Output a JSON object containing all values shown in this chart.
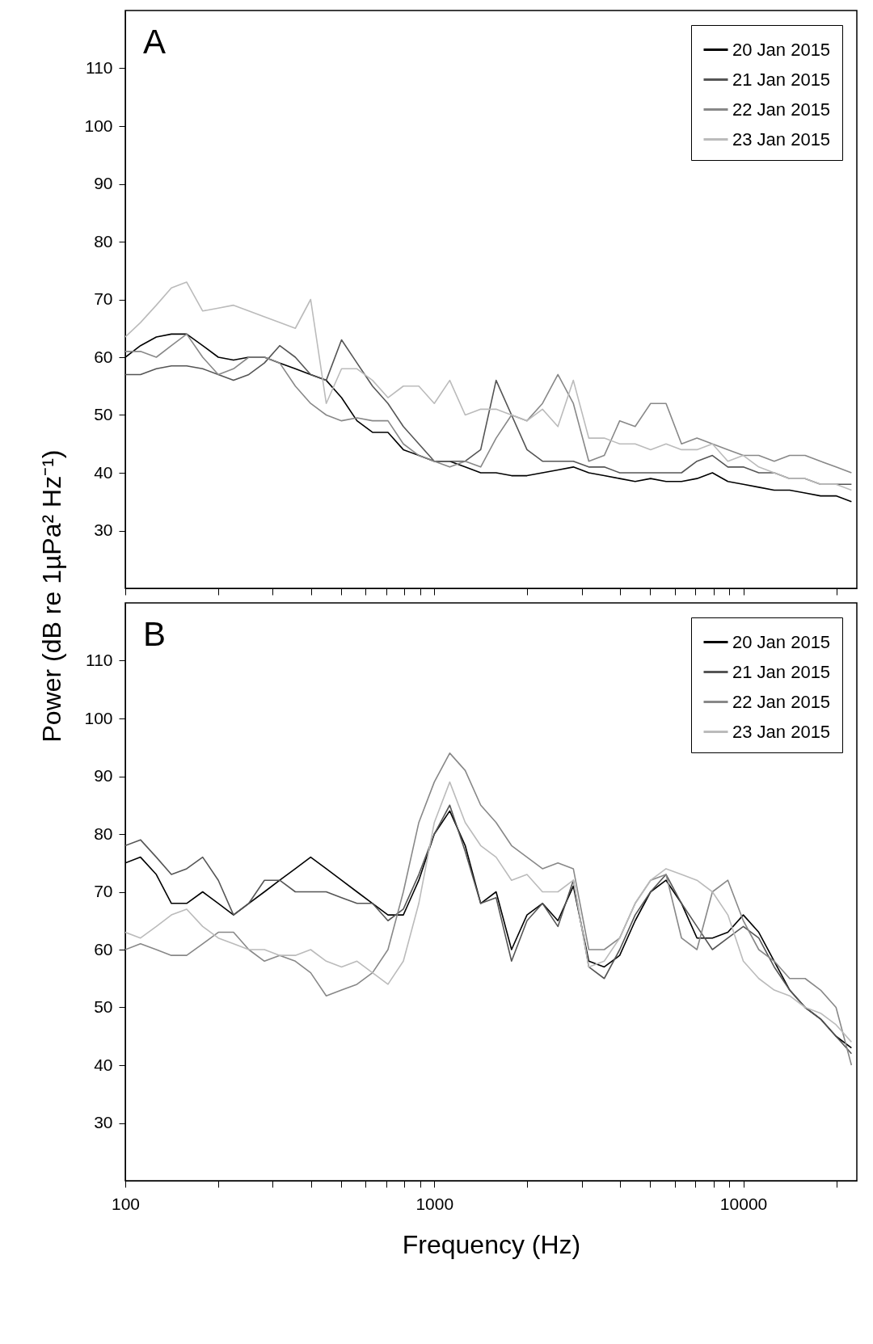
{
  "chart_data": [
    {
      "type": "line",
      "title": "A",
      "ylabel": "Power (dB re 1µPa² Hz⁻¹)",
      "log": "x",
      "grid": false,
      "legend": "top right",
      "marker": "none",
      "line_style": "solid",
      "tick_labels": "y",
      "xlim": [
        100,
        23300
      ],
      "ylim": [
        20,
        120
      ],
      "yticks": [
        30,
        40,
        50,
        60,
        70,
        80,
        90,
        100,
        110
      ],
      "xticks": [
        100,
        {
          "value": 200,
          "label": null
        },
        {
          "value": 300,
          "label": null
        },
        {
          "value": 400,
          "label": null
        },
        {
          "value": 500,
          "label": null
        },
        {
          "value": 600,
          "label": null
        },
        {
          "value": 700,
          "label": null
        },
        {
          "value": 800,
          "label": null
        },
        {
          "value": 900,
          "label": null
        },
        1000,
        {
          "value": 2000,
          "label": null
        },
        {
          "value": 3000,
          "label": null
        },
        {
          "value": 4000,
          "label": null
        },
        {
          "value": 5000,
          "label": null
        },
        {
          "value": 6000,
          "label": null
        },
        {
          "value": 7000,
          "label": null
        },
        {
          "value": 8000,
          "label": null
        },
        {
          "value": 9000,
          "label": null
        },
        10000,
        {
          "value": 20000,
          "label": null
        }
      ],
      "x": [
        100,
        112,
        126,
        141,
        158,
        178,
        200,
        224,
        251,
        282,
        316,
        355,
        398,
        447,
        501,
        562,
        631,
        708,
        794,
        891,
        1000,
        1122,
        1259,
        1413,
        1585,
        1778,
        1995,
        2239,
        2512,
        2818,
        3162,
        3548,
        3981,
        4467,
        5012,
        5623,
        6310,
        7079,
        7943,
        8913,
        10000,
        11220,
        12589,
        14125,
        15849,
        17783,
        19953,
        22387
      ],
      "series": [
        {
          "name": "20 Jan 2015",
          "color": "#000000",
          "values": [
            60,
            62,
            63.5,
            64,
            64,
            62,
            60,
            59.5,
            60,
            60,
            59,
            58,
            57,
            56,
            53,
            49,
            47,
            47,
            44,
            43,
            42,
            42,
            41,
            40,
            40,
            39.5,
            39.5,
            40,
            40.5,
            41,
            40,
            39.5,
            39,
            38.5,
            39,
            38.5,
            38.5,
            39,
            40,
            38.5,
            38,
            37.5,
            37,
            37,
            36.5,
            36,
            36,
            35
          ]
        },
        {
          "name": "21 Jan 2015",
          "color": "#555555",
          "values": [
            57,
            57,
            58,
            58.5,
            58.5,
            58,
            57,
            56,
            57,
            59,
            62,
            60,
            57,
            56,
            63,
            59,
            55,
            52,
            48,
            45,
            42,
            42,
            42,
            44,
            56,
            50,
            44,
            42,
            42,
            42,
            41,
            41,
            40,
            40,
            40,
            40,
            40,
            42,
            43,
            41,
            41,
            40,
            40,
            39,
            39,
            38,
            38,
            38
          ]
        },
        {
          "name": "22 Jan 2015",
          "color": "#888888",
          "values": [
            61,
            61,
            60,
            62,
            64,
            60,
            57,
            58,
            60,
            60,
            59,
            55,
            52,
            50,
            49,
            49.5,
            49,
            49,
            45,
            43,
            42,
            41,
            42,
            41,
            46,
            50,
            49,
            52,
            57,
            52,
            42,
            43,
            49,
            48,
            52,
            52,
            45,
            46,
            45,
            44,
            43,
            43,
            42,
            43,
            43,
            42,
            41,
            40
          ]
        },
        {
          "name": "23 Jan 2015",
          "color": "#bbbbbb",
          "values": [
            63.5,
            66,
            69,
            72,
            73,
            68,
            68.5,
            69,
            68,
            67,
            66,
            65,
            70,
            52,
            58,
            58,
            56,
            53,
            55,
            55,
            52,
            56,
            50,
            51,
            51,
            50,
            49,
            51,
            48,
            56,
            46,
            46,
            45,
            45,
            44,
            45,
            44,
            44,
            45,
            42,
            43,
            41,
            40,
            39,
            39,
            38,
            38,
            37
          ]
        }
      ]
    },
    {
      "type": "line",
      "title": "B",
      "xlabel": "Frequency (Hz)",
      "log": "x",
      "grid": false,
      "legend": "top right",
      "marker": "none",
      "line_style": "solid",
      "xlim": [
        100,
        23300
      ],
      "ylim": [
        20,
        120
      ],
      "yticks": [
        30,
        40,
        50,
        60,
        70,
        80,
        90,
        100,
        110
      ],
      "xticks": [
        100,
        {
          "value": 200,
          "label": null
        },
        {
          "value": 300,
          "label": null
        },
        {
          "value": 400,
          "label": null
        },
        {
          "value": 500,
          "label": null
        },
        {
          "value": 600,
          "label": null
        },
        {
          "value": 700,
          "label": null
        },
        {
          "value": 800,
          "label": null
        },
        {
          "value": 900,
          "label": null
        },
        1000,
        {
          "value": 2000,
          "label": null
        },
        {
          "value": 3000,
          "label": null
        },
        {
          "value": 4000,
          "label": null
        },
        {
          "value": 5000,
          "label": null
        },
        {
          "value": 6000,
          "label": null
        },
        {
          "value": 7000,
          "label": null
        },
        {
          "value": 8000,
          "label": null
        },
        {
          "value": 9000,
          "label": null
        },
        10000,
        {
          "value": 20000,
          "label": null
        }
      ],
      "x": [
        100,
        112,
        126,
        141,
        158,
        178,
        200,
        224,
        251,
        282,
        316,
        355,
        398,
        447,
        501,
        562,
        631,
        708,
        794,
        891,
        1000,
        1122,
        1259,
        1413,
        1585,
        1778,
        1995,
        2239,
        2512,
        2818,
        3162,
        3548,
        3981,
        4467,
        5012,
        5623,
        6310,
        7079,
        7943,
        8913,
        10000,
        11220,
        12589,
        14125,
        15849,
        17783,
        19953,
        22387
      ],
      "series": [
        {
          "name": "20 Jan 2015",
          "color": "#000000",
          "values": [
            75,
            76,
            73,
            68,
            68,
            70,
            68,
            66,
            68,
            70,
            72,
            74,
            76,
            74,
            72,
            70,
            68,
            66,
            66,
            72,
            80,
            84,
            78,
            68,
            70,
            60,
            66,
            68,
            65,
            71,
            58,
            57,
            59,
            65,
            70,
            72,
            68,
            62,
            62,
            63,
            66,
            63,
            58,
            53,
            50,
            48,
            45,
            43
          ]
        },
        {
          "name": "21 Jan 2015",
          "color": "#555555",
          "values": [
            78,
            79,
            76,
            73,
            74,
            76,
            72,
            66,
            68,
            72,
            72,
            70,
            70,
            70,
            69,
            68,
            68,
            65,
            67,
            73,
            80,
            85,
            77,
            68,
            69,
            58,
            65,
            68,
            64,
            72,
            57,
            55,
            60,
            66,
            70,
            73,
            68,
            64,
            60,
            62,
            64,
            62,
            57,
            53,
            50,
            48,
            45,
            42
          ]
        },
        {
          "name": "22 Jan 2015",
          "color": "#888888",
          "values": [
            60,
            61,
            60,
            59,
            59,
            61,
            63,
            63,
            60,
            58,
            59,
            58,
            56,
            52,
            53,
            54,
            56,
            60,
            70,
            82,
            89,
            94,
            91,
            85,
            82,
            78,
            76,
            74,
            75,
            74,
            60,
            60,
            62,
            68,
            72,
            73,
            62,
            60,
            70,
            72,
            65,
            60,
            58,
            55,
            55,
            53,
            50,
            40
          ]
        },
        {
          "name": "23 Jan 2015",
          "color": "#bbbbbb",
          "values": [
            63,
            62,
            64,
            66,
            67,
            64,
            62,
            61,
            60,
            60,
            59,
            59,
            60,
            58,
            57,
            58,
            56,
            54,
            58,
            68,
            82,
            89,
            82,
            78,
            76,
            72,
            73,
            70,
            70,
            72,
            57,
            58,
            62,
            68,
            72,
            74,
            73,
            72,
            70,
            66,
            58,
            55,
            53,
            52,
            50,
            49,
            47,
            44
          ]
        }
      ]
    }
  ]
}
